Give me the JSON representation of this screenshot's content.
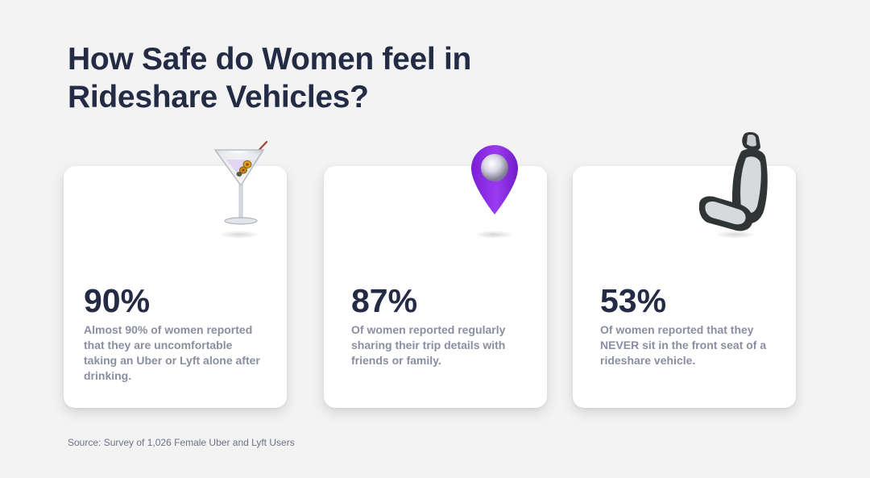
{
  "title": "How Safe do Women feel in Rideshare Vehicles?",
  "cards": [
    {
      "stat": "90%",
      "description": "Almost 90% of women reported that they are uncomfortable taking an Uber or Lyft alone after drinking.",
      "icon": "martini-glass-icon"
    },
    {
      "stat": "87%",
      "description": "Of women reported regularly sharing their trip details with friends or family.",
      "icon": "location-pin-icon"
    },
    {
      "stat": "53%",
      "description": "Of women reported that they NEVER sit in the front seat of a rideshare vehicle.",
      "icon": "car-seat-icon"
    }
  ],
  "source": "Source: Survey of 1,026 Female Uber and Lyft Users",
  "colors": {
    "background": "#f3f3f4",
    "heading": "#232b45",
    "body_text": "#898ea0",
    "pin_purple": "#8a2be2"
  }
}
